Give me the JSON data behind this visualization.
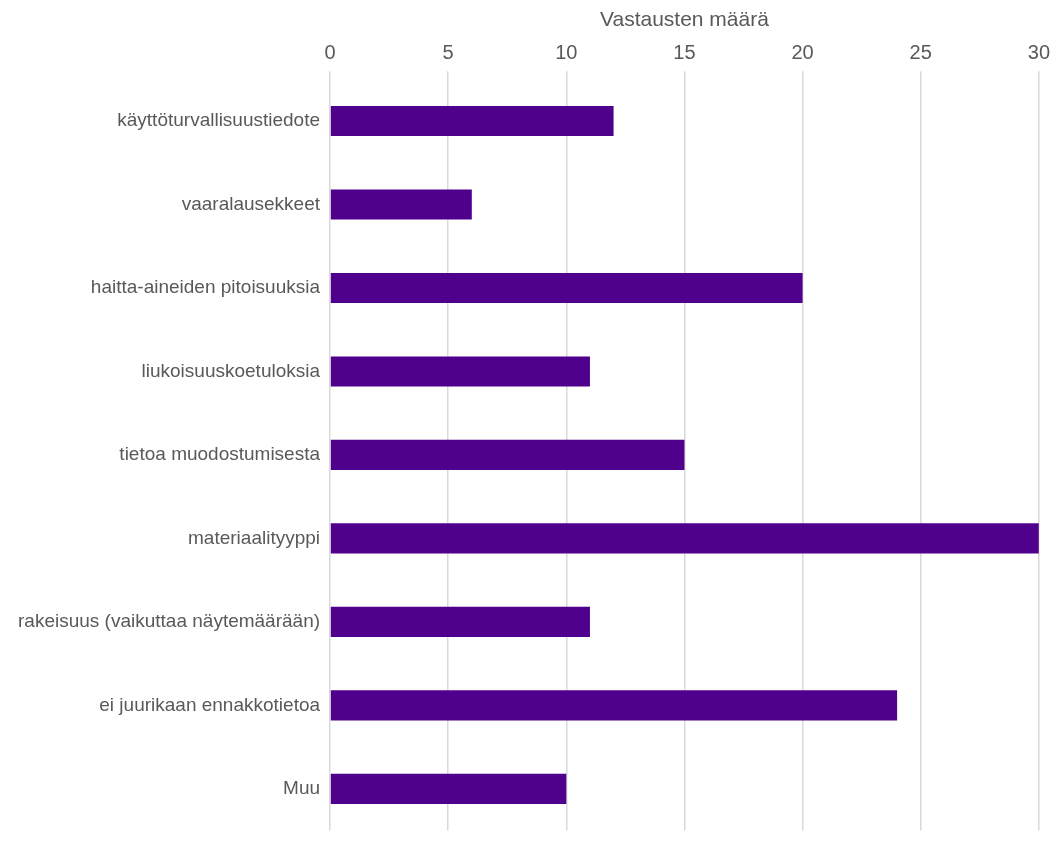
{
  "chart_data": {
    "type": "bar",
    "orientation": "horizontal",
    "xlabel": "Vastausten määrä",
    "categories": [
      "käyttöturvallisuustiedote",
      "vaaralausekkeet",
      "haitta-aineiden pitoisuuksia",
      "liukoisuuskoetuloksia",
      "tietoa muodostumisesta",
      "materiaalityyppi",
      "rakeisuus (vaikuttaa näytemäärään)",
      "ei juurikaan ennakkotietoa",
      "Muu"
    ],
    "values": [
      12,
      6,
      20,
      11,
      15,
      30,
      11,
      24,
      10
    ],
    "color": "#4f008c",
    "xlim": [
      0,
      30
    ],
    "xticks": [
      0,
      5,
      10,
      15,
      20,
      25,
      30
    ],
    "grid": "x"
  }
}
